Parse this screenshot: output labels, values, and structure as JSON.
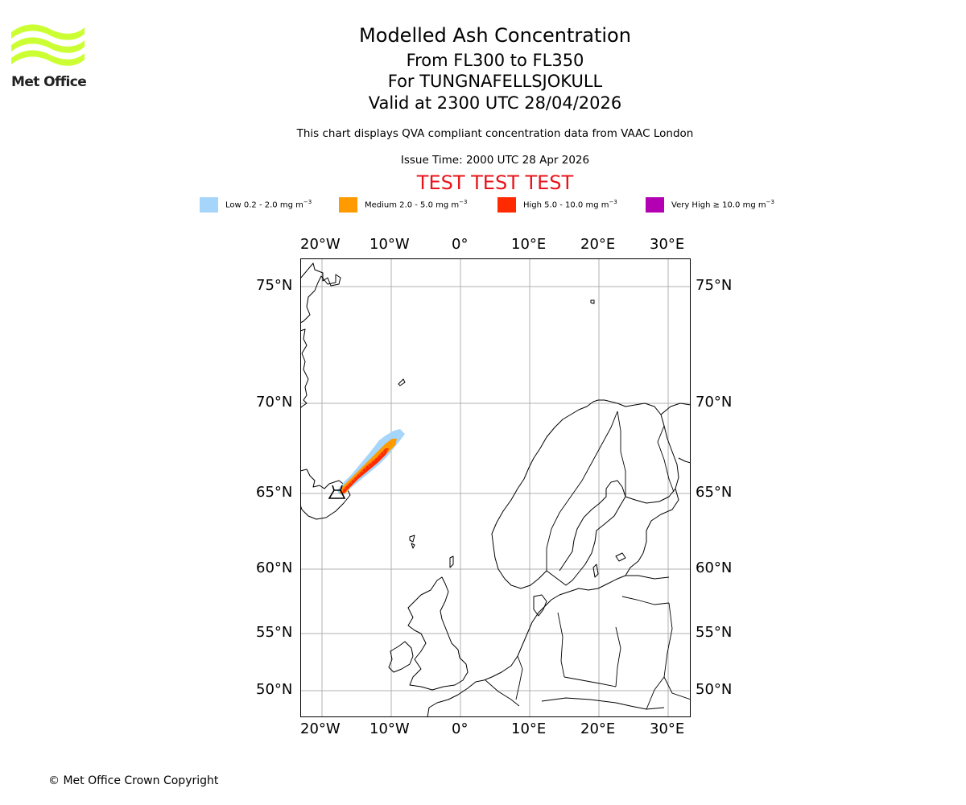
{
  "header": {
    "title": "Modelled Ash Concentration",
    "subtitle_levels": "From FL300 to FL350",
    "subtitle_volcano": "For TUNGNAFELLSJOKULL",
    "subtitle_valid": "Valid at 2300 UTC 28/04/2026",
    "description": "This chart displays QVA compliant concentration data from VAAC London",
    "issue_time": "Issue Time: 2000 UTC 28 Apr 2026",
    "test_banner": "TEST TEST TEST"
  },
  "logo": {
    "text": "Met Office",
    "icon": "met-office-waves-logo",
    "color": "#ccff33"
  },
  "legend": [
    {
      "label": "Low 0.2 - 2.0 mg m",
      "unit_sup": "−3",
      "color": "#a5d5fa"
    },
    {
      "label": "Medium 2.0 - 5.0 mg m",
      "unit_sup": "−3",
      "color": "#ff9a00"
    },
    {
      "label": "High 5.0 - 10.0 mg m",
      "unit_sup": "−3",
      "color": "#ff2a00"
    },
    {
      "label": "Very High  ≥  10.0 mg m",
      "unit_sup": "−3",
      "color": "#b300b3"
    }
  ],
  "map": {
    "projection": "polar-stereographic",
    "lon_labels": [
      "20°W",
      "10°W",
      "0°",
      "10°E",
      "20°E",
      "30°E"
    ],
    "lat_labels": [
      "75°N",
      "70°N",
      "65°N",
      "60°N",
      "55°N",
      "50°N"
    ],
    "grid": true,
    "volcano_icon": "volcano-marker-icon",
    "gridline_color": "#b0b0b0"
  },
  "footer": {
    "copyright": "© Met Office Crown Copyright"
  }
}
